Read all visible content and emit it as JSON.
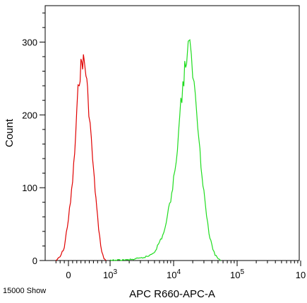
{
  "chart_data": {
    "type": "line",
    "title": "",
    "xlabel": "APC R660-APC-A",
    "ylabel": "Count",
    "x_scale": "biexponential",
    "ylim": [
      0,
      350
    ],
    "x_ticks": [
      {
        "value": 0,
        "label": "0"
      },
      {
        "value": 1000,
        "label": "10",
        "exp": "3"
      },
      {
        "value": 10000,
        "label": "10",
        "exp": "4"
      },
      {
        "value": 100000,
        "label": "10",
        "exp": "5"
      },
      {
        "value": 1000000,
        "label": "10",
        "exp": ""
      }
    ],
    "y_ticks": [
      0,
      100,
      200,
      300
    ],
    "grid": false,
    "legend": "none",
    "series": [
      {
        "color": "#e00000",
        "points": [
          [
            -300,
            0
          ],
          [
            -200,
            5
          ],
          [
            -100,
            18
          ],
          [
            0,
            58
          ],
          [
            50,
            80
          ],
          [
            100,
            110
          ],
          [
            150,
            148
          ],
          [
            200,
            200
          ],
          [
            230,
            230
          ],
          [
            260,
            252
          ],
          [
            300,
            266
          ],
          [
            340,
            276
          ],
          [
            380,
            272
          ],
          [
            420,
            258
          ],
          [
            460,
            230
          ],
          [
            520,
            188
          ],
          [
            580,
            140
          ],
          [
            620,
            110
          ],
          [
            660,
            85
          ],
          [
            700,
            58
          ],
          [
            750,
            32
          ],
          [
            800,
            12
          ],
          [
            850,
            3
          ],
          [
            900,
            0
          ]
        ]
      },
      {
        "color": "#1fdc1f",
        "points": [
          [
            1000,
            0
          ],
          [
            2000,
            1
          ],
          [
            3000,
            3
          ],
          [
            4000,
            6
          ],
          [
            5000,
            12
          ],
          [
            6000,
            25
          ],
          [
            7000,
            38
          ],
          [
            8000,
            60
          ],
          [
            9000,
            85
          ],
          [
            10000,
            110
          ],
          [
            11000,
            140
          ],
          [
            12000,
            180
          ],
          [
            13000,
            215
          ],
          [
            14000,
            240
          ],
          [
            15000,
            262
          ],
          [
            16000,
            278
          ],
          [
            17000,
            288
          ],
          [
            18000,
            290
          ],
          [
            19000,
            278
          ],
          [
            20000,
            262
          ],
          [
            21000,
            240
          ],
          [
            23000,
            205
          ],
          [
            25000,
            170
          ],
          [
            27000,
            135
          ],
          [
            30000,
            95
          ],
          [
            33000,
            62
          ],
          [
            36000,
            38
          ],
          [
            40000,
            20
          ],
          [
            45000,
            8
          ],
          [
            50000,
            3
          ],
          [
            55000,
            0
          ]
        ]
      }
    ]
  },
  "footer": {
    "note": "15000 Show"
  }
}
